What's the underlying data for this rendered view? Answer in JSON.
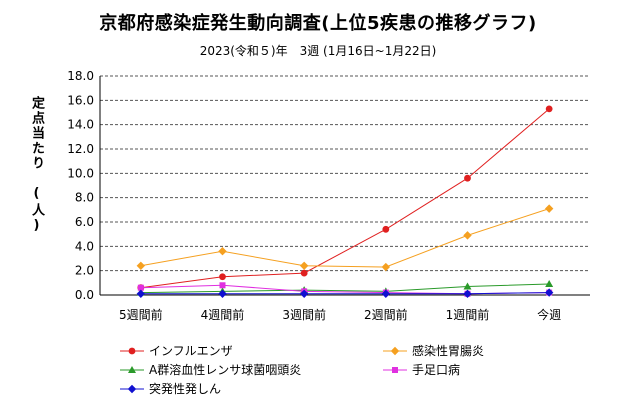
{
  "chart_data": {
    "type": "line",
    "title": "京都府感染症発生動向調査(上位5疾患の推移グラフ)",
    "subtitle": "2023(令和５)年　3週 (1月16日~1月22日)",
    "ylabel": "定点当たり　(人)",
    "xlabel": "",
    "categories": [
      "5週間前",
      "4週間前",
      "3週間前",
      "2週間前",
      "1週間前",
      "今週"
    ],
    "ylim": [
      0,
      18
    ],
    "yticks": [
      "0.0",
      "2.0",
      "4.0",
      "6.0",
      "8.0",
      "10.0",
      "12.0",
      "14.0",
      "16.0",
      "18.0"
    ],
    "grid": true,
    "legend_position": "bottom",
    "series": [
      {
        "name": "インフルエンザ",
        "color": "#e02020",
        "marker": "circle",
        "values": [
          0.6,
          1.5,
          1.8,
          5.4,
          9.6,
          15.3
        ]
      },
      {
        "name": "感染性胃腸炎",
        "color": "#f5a020",
        "marker": "diamond",
        "values": [
          2.4,
          3.6,
          2.4,
          2.3,
          4.9,
          7.1
        ]
      },
      {
        "name": "A群溶血性レンサ球菌咽頭炎",
        "color": "#2a9a2a",
        "marker": "triangle",
        "values": [
          0.2,
          0.3,
          0.4,
          0.3,
          0.7,
          0.9
        ]
      },
      {
        "name": "手足口病",
        "color": "#e030e0",
        "marker": "square",
        "values": [
          0.6,
          0.8,
          0.3,
          0.2,
          0.1,
          0.2
        ]
      },
      {
        "name": "突発性発しん",
        "color": "#1010d0",
        "marker": "diamond",
        "values": [
          0.1,
          0.1,
          0.1,
          0.1,
          0.1,
          0.2
        ]
      }
    ]
  }
}
